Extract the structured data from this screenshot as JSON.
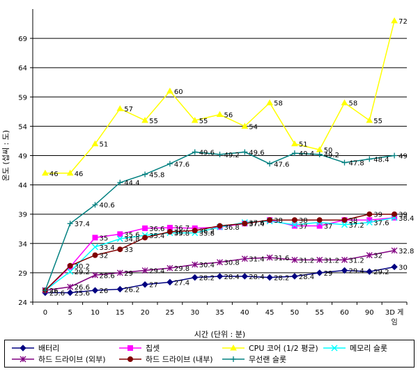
{
  "chart_data": {
    "type": "line",
    "title": "",
    "xlabel": "시간 (단위 : 분)",
    "ylabel": "온도 (섭씨 : 도)",
    "categories": [
      "0",
      "5",
      "10",
      "15",
      "20",
      "25",
      "30",
      "35",
      "40",
      "45",
      "50",
      "55",
      "60",
      "90",
      "3D 게임"
    ],
    "yticks": [
      24,
      29,
      34,
      39,
      44,
      49,
      54,
      59,
      64,
      69
    ],
    "ylim": [
      24,
      74
    ],
    "grid": "horizontal",
    "legend_position": "bottom",
    "series": [
      {
        "name": "배터리",
        "color": "#000080",
        "marker": "diamond",
        "values": [
          25.6,
          25.6,
          26,
          26.2,
          27,
          27.4,
          28.2,
          28.4,
          28.4,
          28.2,
          28.4,
          29,
          29.4,
          29.2,
          30
        ],
        "labels": [
          "25.6",
          "25.6",
          "26",
          "26.2",
          "27",
          "27.4",
          "28.2",
          "28.4",
          "28.4",
          "28.2",
          "28.4",
          "29",
          "29.4",
          "29.2",
          "30"
        ]
      },
      {
        "name": "칩셋",
        "color": "#ff00ff",
        "marker": "square",
        "values": [
          26,
          30,
          35,
          35.6,
          36.6,
          36.7,
          36.6,
          36.8,
          37.4,
          38,
          37,
          37,
          38,
          38,
          38.4
        ],
        "labels": [
          "",
          "",
          "35",
          "35.6",
          "36.6",
          "36.7",
          "",
          "36.8",
          "37.4",
          "",
          "37",
          "37",
          "",
          "",
          "38.4"
        ]
      },
      {
        "name": "CPU 코어 (1/2 평균)",
        "color": "#ffff00",
        "marker": "triangle",
        "values": [
          46,
          46,
          51,
          57,
          55,
          60,
          55,
          56,
          54,
          58,
          51,
          50,
          58,
          55,
          72
        ],
        "labels": [
          "46",
          "46",
          "51",
          "57",
          "55",
          "60",
          "55",
          "56",
          "54",
          "58",
          "51",
          "50",
          "58",
          "55",
          "72"
        ]
      },
      {
        "name": "메모리 슬롯",
        "color": "#00ffff",
        "marker": "x",
        "values": [
          26,
          29.2,
          33.4,
          34.8,
          35.4,
          35.8,
          35.8,
          36.8,
          37.6,
          37.8,
          37.2,
          37.6,
          37.2,
          37.6,
          38.4
        ],
        "labels": [
          "",
          "29.2",
          "33.4",
          "34.8",
          "35.4",
          "35.8",
          "35.8",
          "",
          "37.6",
          "",
          "",
          "",
          "37.2",
          "37.6",
          ""
        ]
      },
      {
        "name": "하드 드라이브 (외부)",
        "color": "#800080",
        "marker": "star",
        "values": [
          26,
          26.6,
          28.6,
          29,
          29.4,
          29.8,
          30.4,
          30.8,
          31.4,
          31.6,
          31.2,
          31.2,
          31.2,
          32,
          32.8
        ],
        "labels": [
          "26",
          "26.6",
          "28.6",
          "29",
          "29.4",
          "29.8",
          "30.4",
          "30.8",
          "31.4",
          "31.6",
          "31.2",
          "31.2",
          "31.2",
          "32",
          "32.8"
        ]
      },
      {
        "name": "하드 드라이브 (내부)",
        "color": "#800000",
        "marker": "circle",
        "values": [
          26,
          30.2,
          32,
          33,
          35,
          36,
          36.2,
          37,
          37.4,
          38,
          38,
          38,
          38,
          39,
          39
        ],
        "labels": [
          "",
          "30.2",
          "32",
          "33",
          "",
          "36",
          "36.2",
          "",
          "",
          "38",
          "38",
          "",
          "38",
          "39",
          "39"
        ]
      },
      {
        "name": "무선랜 슬롯",
        "color": "#008080",
        "marker": "plus",
        "values": [
          26,
          37.4,
          40.6,
          44.4,
          45.8,
          47.6,
          49.6,
          49.2,
          49.6,
          47.6,
          49.4,
          49.2,
          47.8,
          48.4,
          49
        ],
        "labels": [
          "",
          "37.4",
          "40.6",
          "44.4",
          "45.8",
          "47.6",
          "49.6",
          "49.2",
          "49.6",
          "47.6",
          "49.4",
          "49.2",
          "47.8",
          "48.4",
          "49"
        ]
      }
    ]
  }
}
